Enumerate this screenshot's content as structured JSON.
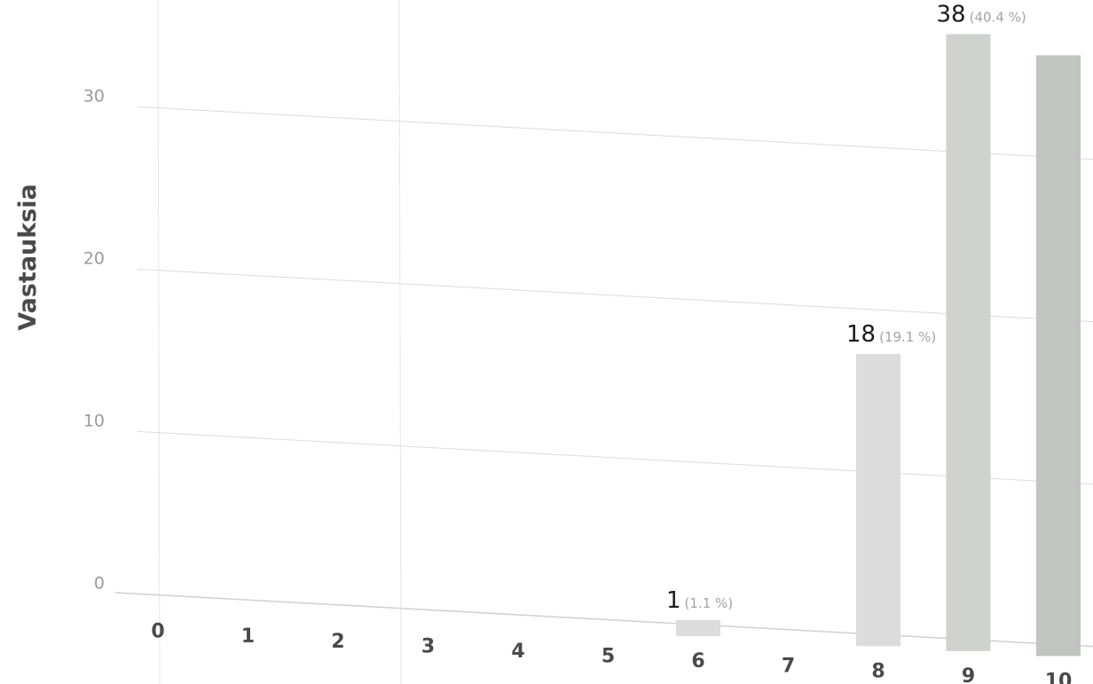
{
  "chart_data": {
    "type": "bar",
    "ylabel": "Vastauksia",
    "xlabel": "",
    "ylim": [
      0,
      35
    ],
    "yticks": [
      0,
      10,
      20,
      30
    ],
    "categories": [
      "0",
      "1",
      "2",
      "3",
      "4",
      "5",
      "6",
      "7",
      "8",
      "9",
      "10"
    ],
    "values": [
      0,
      0,
      0,
      0,
      0,
      0,
      1,
      0,
      18,
      38,
      37
    ],
    "data_labels": [
      {
        "category": "6",
        "value": "1",
        "percent": "(1.1 %)"
      },
      {
        "category": "8",
        "value": "18",
        "percent": "(19.1 %)"
      },
      {
        "category": "9",
        "value": "38",
        "percent": "(40.4 %)"
      }
    ],
    "grid": true,
    "colors": {
      "bar_light": "#dcdcdc",
      "bar_mid": "#cfd2cd",
      "bar_dark": "#c0c5bf"
    }
  }
}
